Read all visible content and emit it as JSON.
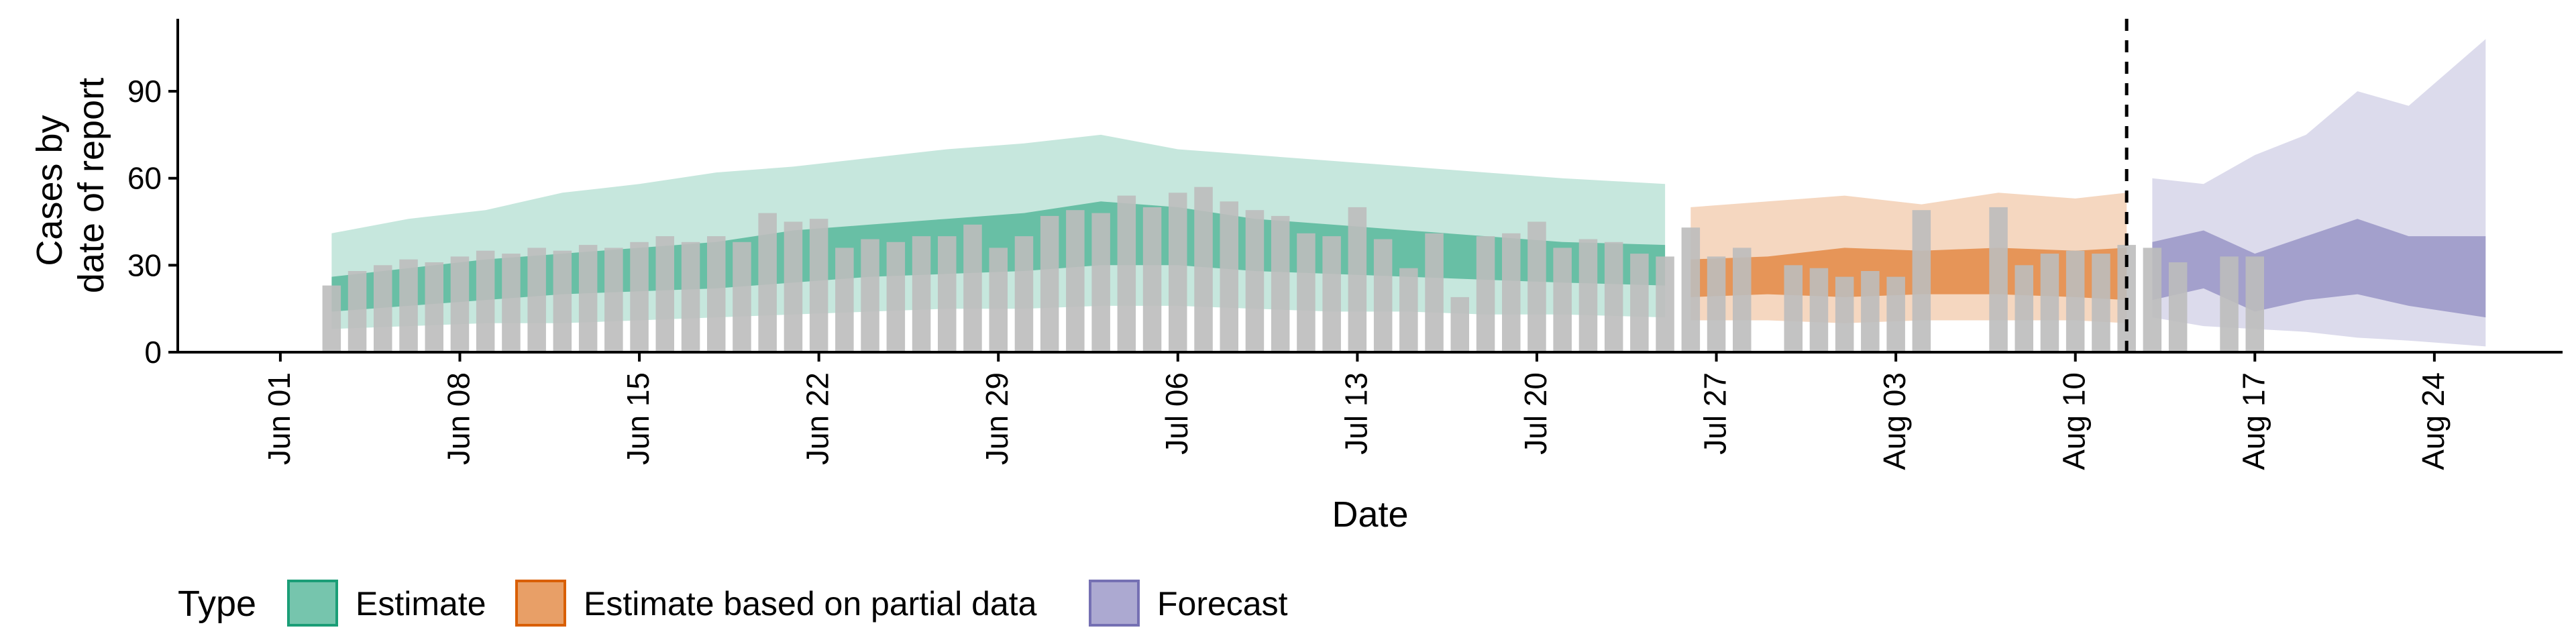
{
  "chart_data": {
    "type": "bar",
    "xlabel": "Date",
    "ylabel_lines": [
      "Cases by",
      "date of report"
    ],
    "ylim": [
      0,
      115
    ],
    "yticks": [
      0,
      30,
      60,
      90
    ],
    "x_range": [
      "2021-05-28",
      "2021-08-29"
    ],
    "x_ticks": [
      {
        "date": "2021-06-01",
        "label": "Jun 01"
      },
      {
        "date": "2021-06-08",
        "label": "Jun 08"
      },
      {
        "date": "2021-06-15",
        "label": "Jun 15"
      },
      {
        "date": "2021-06-22",
        "label": "Jun 22"
      },
      {
        "date": "2021-06-29",
        "label": "Jun 29"
      },
      {
        "date": "2021-07-06",
        "label": "Jul 06"
      },
      {
        "date": "2021-07-13",
        "label": "Jul 13"
      },
      {
        "date": "2021-07-20",
        "label": "Jul 20"
      },
      {
        "date": "2021-07-27",
        "label": "Jul 27"
      },
      {
        "date": "2021-08-03",
        "label": "Aug 03"
      },
      {
        "date": "2021-08-10",
        "label": "Aug 10"
      },
      {
        "date": "2021-08-17",
        "label": "Aug 17"
      },
      {
        "date": "2021-08-24",
        "label": "Aug 24"
      }
    ],
    "vline_date": "2021-08-12",
    "grid": false,
    "legend": {
      "title": "Type",
      "position": "bottom",
      "items": [
        {
          "label": "Estimate",
          "color": "#1b9e77"
        },
        {
          "label": "Estimate based on partial data",
          "color": "#d95f02"
        },
        {
          "label": "Forecast",
          "color": "#7570b3"
        }
      ]
    },
    "bar_color": "#bdbdbd",
    "bars": {
      "start_date": "2021-06-03",
      "values": [
        23,
        28,
        30,
        32,
        31,
        33,
        35,
        34,
        36,
        35,
        37,
        36,
        38,
        40,
        38,
        40,
        38,
        48,
        45,
        46,
        36,
        39,
        38,
        40,
        40,
        44,
        36,
        40,
        47,
        49,
        48,
        54,
        50,
        55,
        57,
        52,
        49,
        47,
        41,
        40,
        50,
        39,
        29,
        41,
        19,
        40,
        41,
        45,
        36,
        39,
        38,
        34,
        33,
        43,
        33,
        36,
        0,
        30,
        29,
        26,
        28,
        26,
        49,
        0,
        0,
        50,
        30,
        34,
        35,
        34,
        37,
        36,
        31,
        0,
        33,
        33
      ],
      "gaps_note": "zero means no bar drawn"
    },
    "ribbons": [
      {
        "name": "Estimate",
        "color": "#1b9e77",
        "dates": [
          "2021-06-03",
          "2021-06-06",
          "2021-06-09",
          "2021-06-12",
          "2021-06-15",
          "2021-06-18",
          "2021-06-21",
          "2021-06-24",
          "2021-06-27",
          "2021-06-30",
          "2021-07-03",
          "2021-07-06",
          "2021-07-09",
          "2021-07-12",
          "2021-07-15",
          "2021-07-18",
          "2021-07-21",
          "2021-07-25"
        ],
        "upper90": [
          41,
          46,
          49,
          55,
          58,
          62,
          64,
          67,
          70,
          72,
          75,
          70,
          68,
          66,
          64,
          62,
          60,
          58
        ],
        "lower90": [
          8,
          9,
          10,
          10,
          11,
          12,
          13,
          14,
          15,
          15,
          16,
          16,
          15,
          14,
          14,
          13,
          13,
          12
        ],
        "upper50": [
          26,
          29,
          32,
          34,
          36,
          38,
          42,
          44,
          46,
          48,
          52,
          50,
          46,
          44,
          42,
          40,
          38,
          37
        ],
        "lower50": [
          14,
          16,
          18,
          20,
          21,
          22,
          24,
          26,
          27,
          28,
          30,
          30,
          28,
          27,
          26,
          25,
          24,
          23
        ]
      },
      {
        "name": "Estimate based on partial data",
        "color": "#d95f02",
        "dates": [
          "2021-07-26",
          "2021-07-29",
          "2021-08-01",
          "2021-08-04",
          "2021-08-07",
          "2021-08-10",
          "2021-08-12"
        ],
        "upper90": [
          50,
          52,
          54,
          51,
          55,
          53,
          55
        ],
        "lower90": [
          11,
          11,
          10,
          11,
          11,
          11,
          10
        ],
        "upper50": [
          32,
          33,
          36,
          35,
          36,
          35,
          36
        ],
        "lower50": [
          19,
          20,
          19,
          20,
          20,
          19,
          18
        ]
      },
      {
        "name": "Forecast",
        "color": "#7570b3",
        "dates": [
          "2021-08-13",
          "2021-08-15",
          "2021-08-17",
          "2021-08-19",
          "2021-08-21",
          "2021-08-23",
          "2021-08-26"
        ],
        "upper90": [
          60,
          58,
          68,
          75,
          90,
          85,
          108
        ],
        "lower90": [
          12,
          9,
          8,
          7,
          5,
          4,
          2
        ],
        "upper50": [
          38,
          42,
          34,
          40,
          46,
          40,
          40
        ],
        "lower50": [
          18,
          22,
          14,
          18,
          20,
          16,
          12
        ]
      }
    ]
  }
}
